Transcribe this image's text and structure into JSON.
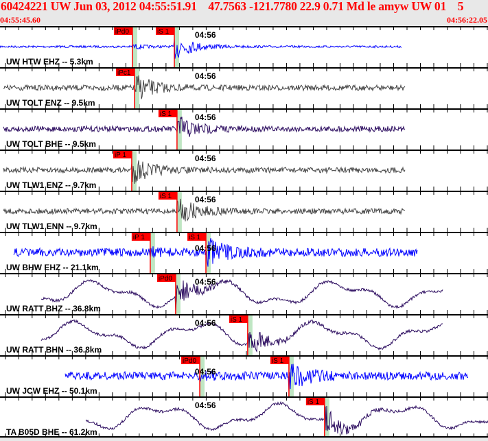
{
  "header": {
    "title": "60424221 UW Jun 03, 2012 04:55:51.91    47.7563 -121.7780 22.9 0.71 Md le amyw UW 01    5",
    "start_time": "04:55:45.60",
    "end_time": "04:56:22.05"
  },
  "minute_label": "04:56",
  "colors": {
    "pick": "#ff0000",
    "pick_band": "#bfe6c3",
    "header_text": "#ff0000"
  },
  "traces": [
    {
      "label": "UW HTW EHZ -- 5.3km",
      "color": "#0000ff",
      "picks": [
        {
          "label": "iPd0",
          "time": "04:55:55.49"
        },
        {
          "label": "iS 1",
          "time": "04:55:58.62"
        }
      ]
    },
    {
      "label": "UW TOLT ENZ -- 9.5km",
      "color": "#444444",
      "picks": [
        {
          "label": "iPc1",
          "time": "04:55:55.65"
        }
      ]
    },
    {
      "label": "UW TOLT BHE -- 9.5km",
      "color": "#2a0a5e",
      "picks": [
        {
          "label": "iS 1",
          "time": "04:55:58.82"
        }
      ]
    },
    {
      "label": "UW TLW1 ENZ -- 9.7km",
      "color": "#444444",
      "picks": [
        {
          "label": "iP 1",
          "time": "04:55:55.44"
        }
      ]
    },
    {
      "label": "UW TLW1 ENN -- 9.7km",
      "color": "#444444",
      "picks": [
        {
          "label": "iS 1",
          "time": "04:55:58.82"
        }
      ]
    },
    {
      "label": "UW BHW EHZ -- 21.1km",
      "color": "#0000ff",
      "picks": [
        {
          "label": "iP 1",
          "time": "04:55:56.82"
        },
        {
          "label": "iS 1",
          "time": "04:56:00.98"
        }
      ]
    },
    {
      "label": "UW RATT BHZ -- 36.8km",
      "color": "#2a0a5e",
      "picks": [
        {
          "label": "iPd0",
          "time": "04:55:58.72"
        }
      ]
    },
    {
      "label": "UW RATT BHN -- 36.8km",
      "color": "#2a0a5e",
      "picks": [
        {
          "label": "iS 1",
          "time": "04:56:04.10"
        }
      ]
    },
    {
      "label": "UW JCW EHZ -- 50.1km",
      "color": "#0000ff",
      "picks": [
        {
          "label": "iPd0",
          "time": "04:56:00.52"
        },
        {
          "label": "iS 1",
          "time": "04:56:07.18"
        }
      ]
    },
    {
      "label": "TA B05D BHE -- 61.2km",
      "color": "#2a0a5e",
      "picks": [
        {
          "label": "iS 1",
          "time": "04:56:09.84"
        }
      ]
    }
  ]
}
